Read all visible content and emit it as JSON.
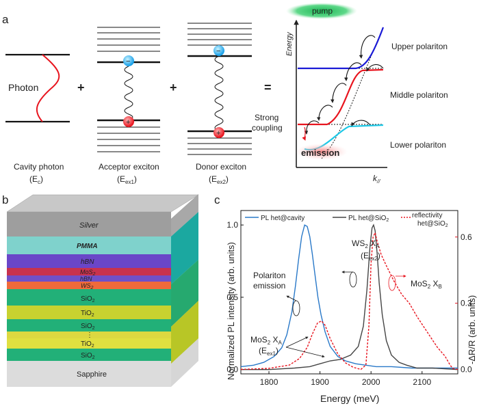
{
  "panel_labels": {
    "a": "a",
    "b": "b",
    "c": "c"
  },
  "pump_label": "pump",
  "photon": {
    "label": "Photon",
    "caption": "Cavity photon",
    "symbol": "(E",
    "sub": "c",
    "close": ")"
  },
  "acceptor": {
    "caption": "Acceptor exciton",
    "symbol": "(E",
    "sub": "ex1",
    "close": ")"
  },
  "donor": {
    "caption": "Donor exciton",
    "symbol": "(E",
    "sub": "ex2",
    "close": ")"
  },
  "operators": {
    "plus1": "+",
    "plus2": "+",
    "equals": "="
  },
  "charges": {
    "minus": "−",
    "plus": "+"
  },
  "dispersion": {
    "ylabel": "Energy",
    "xlabel": "k",
    "xlabel_sub": "//",
    "upper": "Upper polariton",
    "middle": "Middle polariton",
    "lower": "Lower polariton",
    "strong1": "Strong",
    "strong2": "coupling",
    "emission": "emission",
    "colors": {
      "upper": "#1a1ad6",
      "middle": "#e8141e",
      "lower": "#1ec8e6",
      "pump": "#22c05a",
      "emission": "#e8141e"
    }
  },
  "stack": {
    "layers": {
      "silver": "Silver",
      "pmma": "PMMA",
      "hbn_top": "hBN",
      "mos2": "MoS",
      "mos2_sub": "2",
      "hbn_mid": "hBN",
      "ws2": "WS",
      "ws2_sub": "2",
      "sio2_a": "SiO",
      "sio2_a_sub": "2",
      "tio2_a": "TiO",
      "tio2_a_sub": "2",
      "sio2_b": "SiO",
      "sio2_b_sub": "2",
      "dots": "⋮",
      "tio2_b": "TiO",
      "tio2_b_sub": "2",
      "sio2_c": "SiO",
      "sio2_c_sub": "2",
      "sapphire": "Sapphire"
    }
  },
  "chart_data": {
    "type": "line",
    "title": "",
    "xlabel": "Energy (meV)",
    "ylabel": "Normalized PL intensity (arb. units)",
    "y2label": "-ΔR/R (arb. units)",
    "xlim": [
      1745,
      2170
    ],
    "ylim": [
      -0.03,
      1.1
    ],
    "y2lim": [
      -0.02,
      0.72
    ],
    "xticks": [
      "1800",
      "1900",
      "2000",
      "2100"
    ],
    "yticks": [
      "0.0",
      "0.5",
      "1.0"
    ],
    "y2ticks": [
      "0.0",
      "0.3",
      "0.6"
    ],
    "legend": {
      "s1": "PL het@cavity",
      "s2": "PL het@SiO",
      "s2_sub": "2",
      "s3a": "reflectivity",
      "s3b": "het@SiO",
      "s3_sub": "2"
    },
    "annotations": {
      "polariton1": "Polariton",
      "polariton2": "emission",
      "mos2xa": "MoS",
      "mos2xa_sub": "2",
      "mos2xa_x": " X",
      "mos2xa_xsub": "A",
      "eex1": "(E",
      "eex1_sub": "ex1",
      "eex1_close": ")",
      "ws2xa": "WS",
      "ws2xa_sub": "2",
      "ws2xa_x": " X",
      "ws2xa_xsub": "A",
      "eex2": "(E",
      "eex2_sub": "ex2",
      "eex2_close": ")",
      "mos2xb": "MoS",
      "mos2xb_sub": "2",
      "mos2xb_x": " X",
      "mos2xb_xsub": "B"
    },
    "series": [
      {
        "name": "PL het@cavity",
        "axis": "left",
        "color": "#2878c8",
        "x": [
          1745,
          1770,
          1790,
          1810,
          1825,
          1835,
          1845,
          1852,
          1858,
          1864,
          1870,
          1875,
          1880,
          1885,
          1890,
          1896,
          1902,
          1910,
          1920,
          1935,
          1950,
          1970,
          1990,
          2010,
          2040,
          2080,
          2120,
          2170
        ],
        "y": [
          0.02,
          0.03,
          0.05,
          0.09,
          0.15,
          0.24,
          0.4,
          0.58,
          0.76,
          0.92,
          1.0,
          0.99,
          0.92,
          0.8,
          0.66,
          0.5,
          0.38,
          0.26,
          0.16,
          0.09,
          0.06,
          0.04,
          0.03,
          0.02,
          0.02,
          0.01,
          0.01,
          0.01
        ]
      },
      {
        "name": "PL het@SiO2",
        "axis": "left",
        "color": "#444444",
        "x": [
          1745,
          1800,
          1850,
          1880,
          1900,
          1920,
          1940,
          1960,
          1975,
          1985,
          1992,
          1998,
          2002,
          2005,
          2008,
          2012,
          2016,
          2022,
          2030,
          2040,
          2055,
          2070,
          2090,
          2120,
          2170
        ],
        "y": [
          0.0,
          0.0,
          0.01,
          0.02,
          0.04,
          0.06,
          0.07,
          0.1,
          0.16,
          0.3,
          0.55,
          0.85,
          0.98,
          1.0,
          0.96,
          0.8,
          0.6,
          0.38,
          0.2,
          0.1,
          0.05,
          0.03,
          0.01,
          0.01,
          0.0
        ],
        "dash": false
      },
      {
        "name": "reflectivity het@SiO2",
        "axis": "right",
        "color": "#e8141e",
        "dash": true,
        "x": [
          1745,
          1800,
          1840,
          1860,
          1875,
          1885,
          1895,
          1903,
          1910,
          1920,
          1935,
          1950,
          1965,
          1980,
          1990,
          1996,
          2000,
          2004,
          2008,
          2012,
          2020,
          2030,
          2045,
          2060,
          2075,
          2090,
          2110,
          2130,
          2145,
          2155,
          2160,
          2170
        ],
        "y": [
          0.0,
          0.005,
          0.02,
          0.05,
          0.1,
          0.16,
          0.21,
          0.22,
          0.2,
          0.14,
          0.07,
          0.03,
          0.01,
          0.0,
          0.02,
          0.2,
          0.48,
          0.6,
          0.62,
          0.58,
          0.52,
          0.47,
          0.4,
          0.34,
          0.3,
          0.24,
          0.17,
          0.1,
          0.06,
          0.02,
          0.005,
          0.0
        ]
      }
    ]
  }
}
